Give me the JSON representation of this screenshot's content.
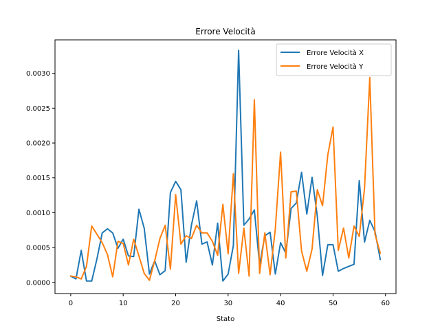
{
  "chart_data": {
    "type": "line",
    "title": "Errore Velocità",
    "xlabel": "Stato",
    "ylabel": "",
    "xlim": [
      -3,
      62
    ],
    "ylim": [
      -0.00016,
      0.00348
    ],
    "xticks": [
      0,
      10,
      20,
      30,
      40,
      50,
      60
    ],
    "yticks": [
      0.0,
      0.0005,
      0.001,
      0.0015,
      0.002,
      0.0025,
      0.003
    ],
    "ytick_labels": [
      "0.0000",
      "0.0005",
      "0.0010",
      "0.0015",
      "0.0020",
      "0.0025",
      "0.0030"
    ],
    "grid": false,
    "legend_position": "top-right",
    "x": [
      0,
      1,
      2,
      3,
      4,
      5,
      6,
      7,
      8,
      9,
      10,
      11,
      12,
      13,
      14,
      15,
      16,
      17,
      18,
      19,
      20,
      21,
      22,
      23,
      24,
      25,
      26,
      27,
      28,
      29,
      30,
      31,
      32,
      33,
      34,
      35,
      36,
      37,
      38,
      39,
      40,
      41,
      42,
      43,
      44,
      45,
      46,
      47,
      48,
      49,
      50,
      51,
      52,
      53,
      54,
      55,
      56,
      57,
      58,
      59
    ],
    "series": [
      {
        "name": "Errore Velocità X",
        "color": "#1f77b4",
        "values": [
          9e-05,
          5e-05,
          0.00046,
          2e-05,
          2e-05,
          0.00034,
          0.00071,
          0.00077,
          0.00071,
          0.00049,
          0.00062,
          0.00038,
          0.00037,
          0.00105,
          0.00078,
          0.00012,
          0.00031,
          0.00011,
          0.00017,
          0.00129,
          0.00145,
          0.00133,
          0.00029,
          0.00082,
          0.00117,
          0.00055,
          0.00058,
          0.00025,
          0.00085,
          2e-05,
          0.00012,
          0.00053,
          0.00333,
          0.00082,
          0.00091,
          0.00104,
          0.00025,
          0.00067,
          0.00072,
          0.00012,
          0.00057,
          0.00042,
          0.00106,
          0.00114,
          0.00158,
          0.00098,
          0.00151,
          0.00095,
          0.0001,
          0.00054,
          0.00054,
          0.00016,
          0.0002,
          0.00023,
          0.00026,
          0.00146,
          0.00058,
          0.00089,
          0.00073,
          0.00033
        ]
      },
      {
        "name": "Errore Velocità Y",
        "color": "#ff7f0e",
        "values": [
          9e-05,
          8e-05,
          5e-05,
          0.00023,
          0.00081,
          0.00069,
          0.00057,
          0.0004,
          8e-05,
          0.00059,
          0.00056,
          0.00025,
          0.00062,
          0.00038,
          0.00013,
          3e-05,
          0.00031,
          0.00063,
          0.00082,
          0.00019,
          0.00126,
          0.00055,
          0.00067,
          0.00063,
          0.00082,
          0.00071,
          0.00071,
          0.00059,
          0.00039,
          0.00112,
          0.00041,
          0.00156,
          0.00013,
          0.00078,
          9e-05,
          0.00262,
          0.00013,
          0.00071,
          0.00011,
          0.00077,
          0.00187,
          0.00035,
          0.0013,
          0.00131,
          0.00045,
          0.00016,
          0.00048,
          0.00133,
          0.0011,
          0.00183,
          0.00223,
          0.00046,
          0.00078,
          0.00035,
          0.00081,
          0.00066,
          0.00135,
          0.00294,
          0.00069,
          0.00042
        ]
      }
    ]
  }
}
